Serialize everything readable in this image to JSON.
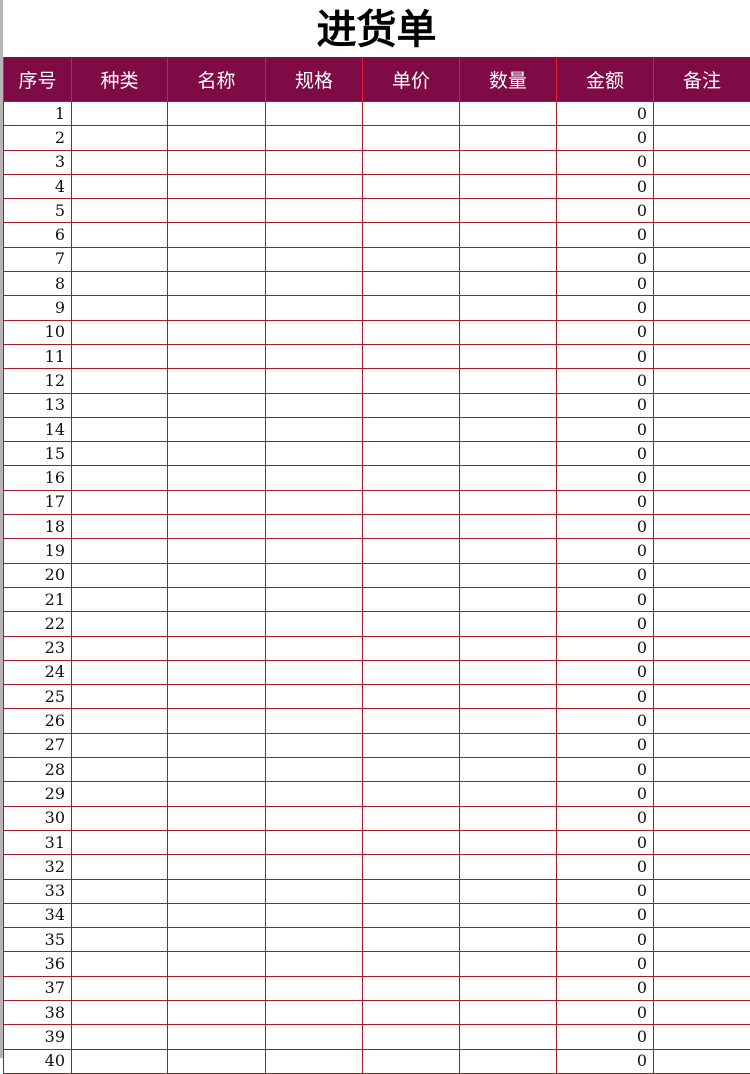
{
  "title": "进货单",
  "colors": {
    "header_bg": "#7e0b46",
    "grid": "#a81a2a"
  },
  "columns": [
    "序号",
    "种类",
    "名称",
    "规格",
    "单价",
    "数量",
    "金额",
    "备注"
  ],
  "rows": [
    {
      "no": "1",
      "amount": "0"
    },
    {
      "no": "2",
      "amount": "0"
    },
    {
      "no": "3",
      "amount": "0"
    },
    {
      "no": "4",
      "amount": "0"
    },
    {
      "no": "5",
      "amount": "0"
    },
    {
      "no": "6",
      "amount": "0"
    },
    {
      "no": "7",
      "amount": "0"
    },
    {
      "no": "8",
      "amount": "0"
    },
    {
      "no": "9",
      "amount": "0"
    },
    {
      "no": "10",
      "amount": "0"
    },
    {
      "no": "11",
      "amount": "0"
    },
    {
      "no": "12",
      "amount": "0"
    },
    {
      "no": "13",
      "amount": "0"
    },
    {
      "no": "14",
      "amount": "0"
    },
    {
      "no": "15",
      "amount": "0"
    },
    {
      "no": "16",
      "amount": "0"
    },
    {
      "no": "17",
      "amount": "0"
    },
    {
      "no": "18",
      "amount": "0"
    },
    {
      "no": "19",
      "amount": "0"
    },
    {
      "no": "20",
      "amount": "0"
    },
    {
      "no": "21",
      "amount": "0"
    },
    {
      "no": "22",
      "amount": "0"
    },
    {
      "no": "23",
      "amount": "0"
    },
    {
      "no": "24",
      "amount": "0"
    },
    {
      "no": "25",
      "amount": "0"
    },
    {
      "no": "26",
      "amount": "0"
    },
    {
      "no": "27",
      "amount": "0"
    },
    {
      "no": "28",
      "amount": "0"
    },
    {
      "no": "29",
      "amount": "0"
    },
    {
      "no": "30",
      "amount": "0"
    },
    {
      "no": "31",
      "amount": "0"
    },
    {
      "no": "32",
      "amount": "0"
    },
    {
      "no": "33",
      "amount": "0"
    },
    {
      "no": "34",
      "amount": "0"
    },
    {
      "no": "35",
      "amount": "0"
    },
    {
      "no": "36",
      "amount": "0"
    },
    {
      "no": "37",
      "amount": "0"
    },
    {
      "no": "38",
      "amount": "0"
    },
    {
      "no": "39",
      "amount": "0"
    },
    {
      "no": "40",
      "amount": "0"
    }
  ]
}
